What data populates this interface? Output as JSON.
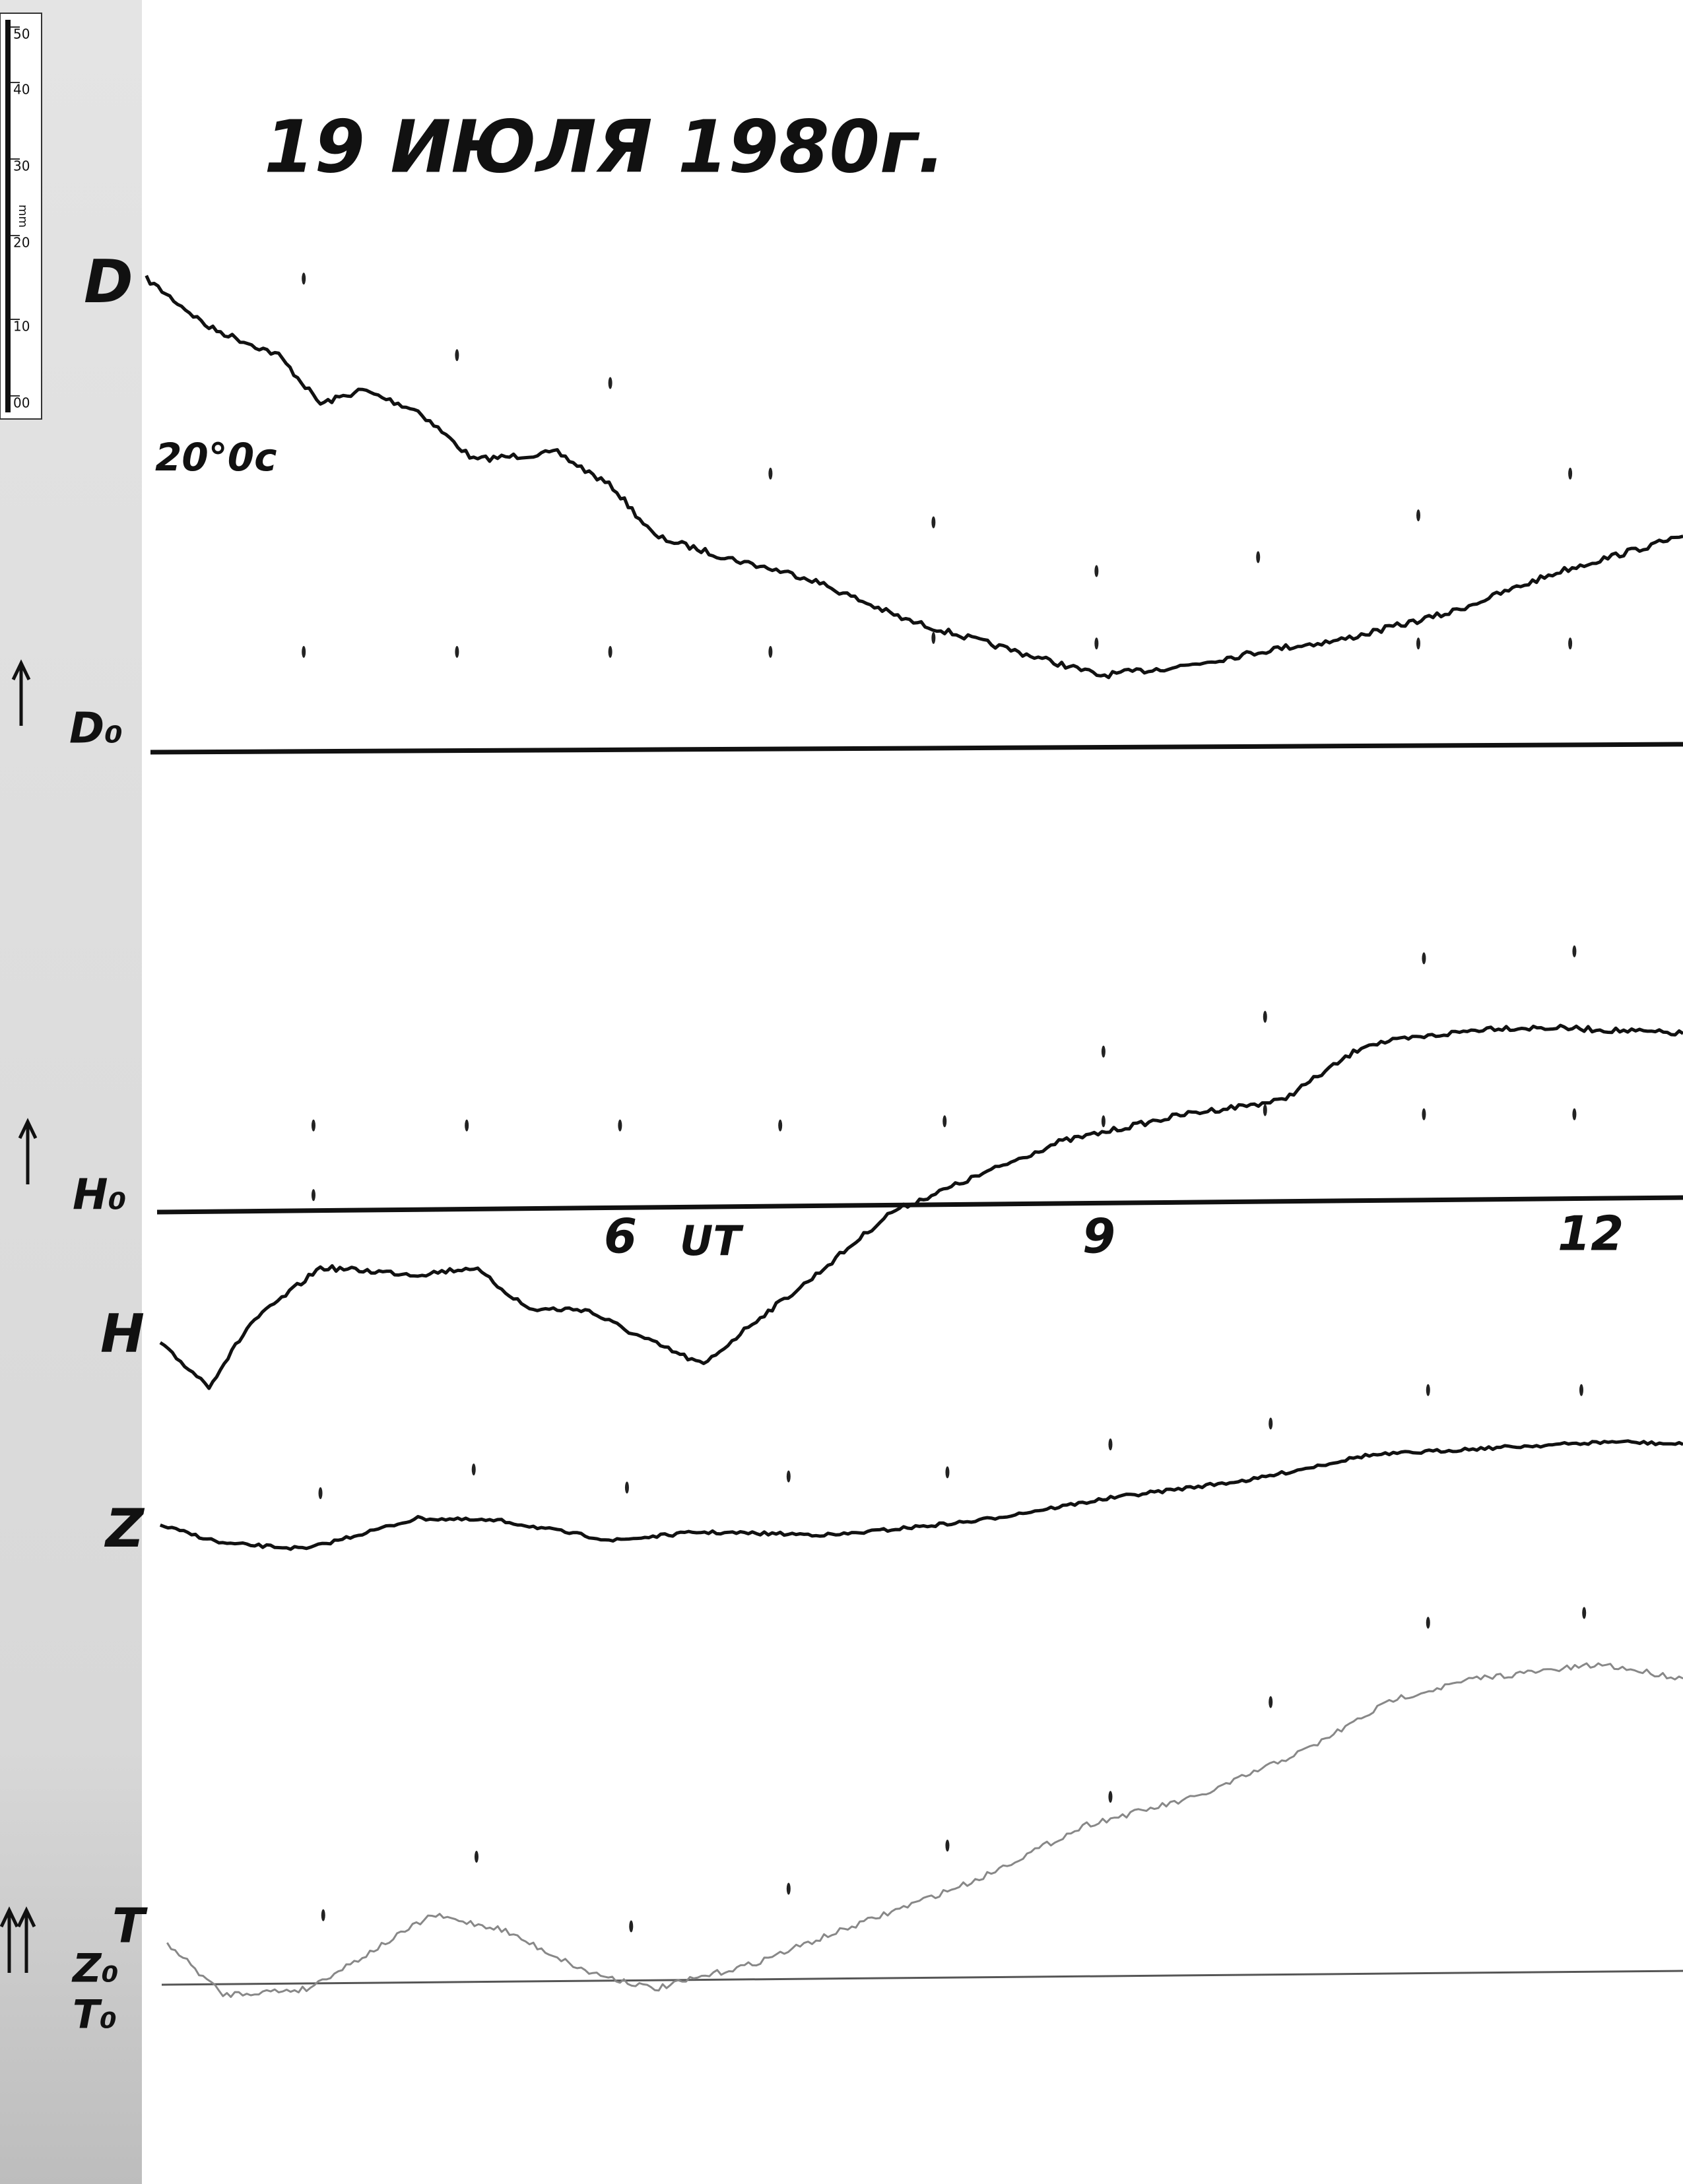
{
  "header": {
    "title": "19 ИЮЛЯ 1980г."
  },
  "ruler": {
    "ticks": [
      "50",
      "40",
      "30",
      "20",
      "10",
      "00"
    ],
    "unit": "mm"
  },
  "labels": {
    "d": "D",
    "d_scale": "20°0с",
    "d0": "D₀",
    "h0": "H₀",
    "h": "H",
    "z": "Z",
    "t": "T",
    "z0": "Z₀",
    "t0": "T₀"
  },
  "time_axis": [
    "6",
    "UT",
    "9",
    "12"
  ]
}
